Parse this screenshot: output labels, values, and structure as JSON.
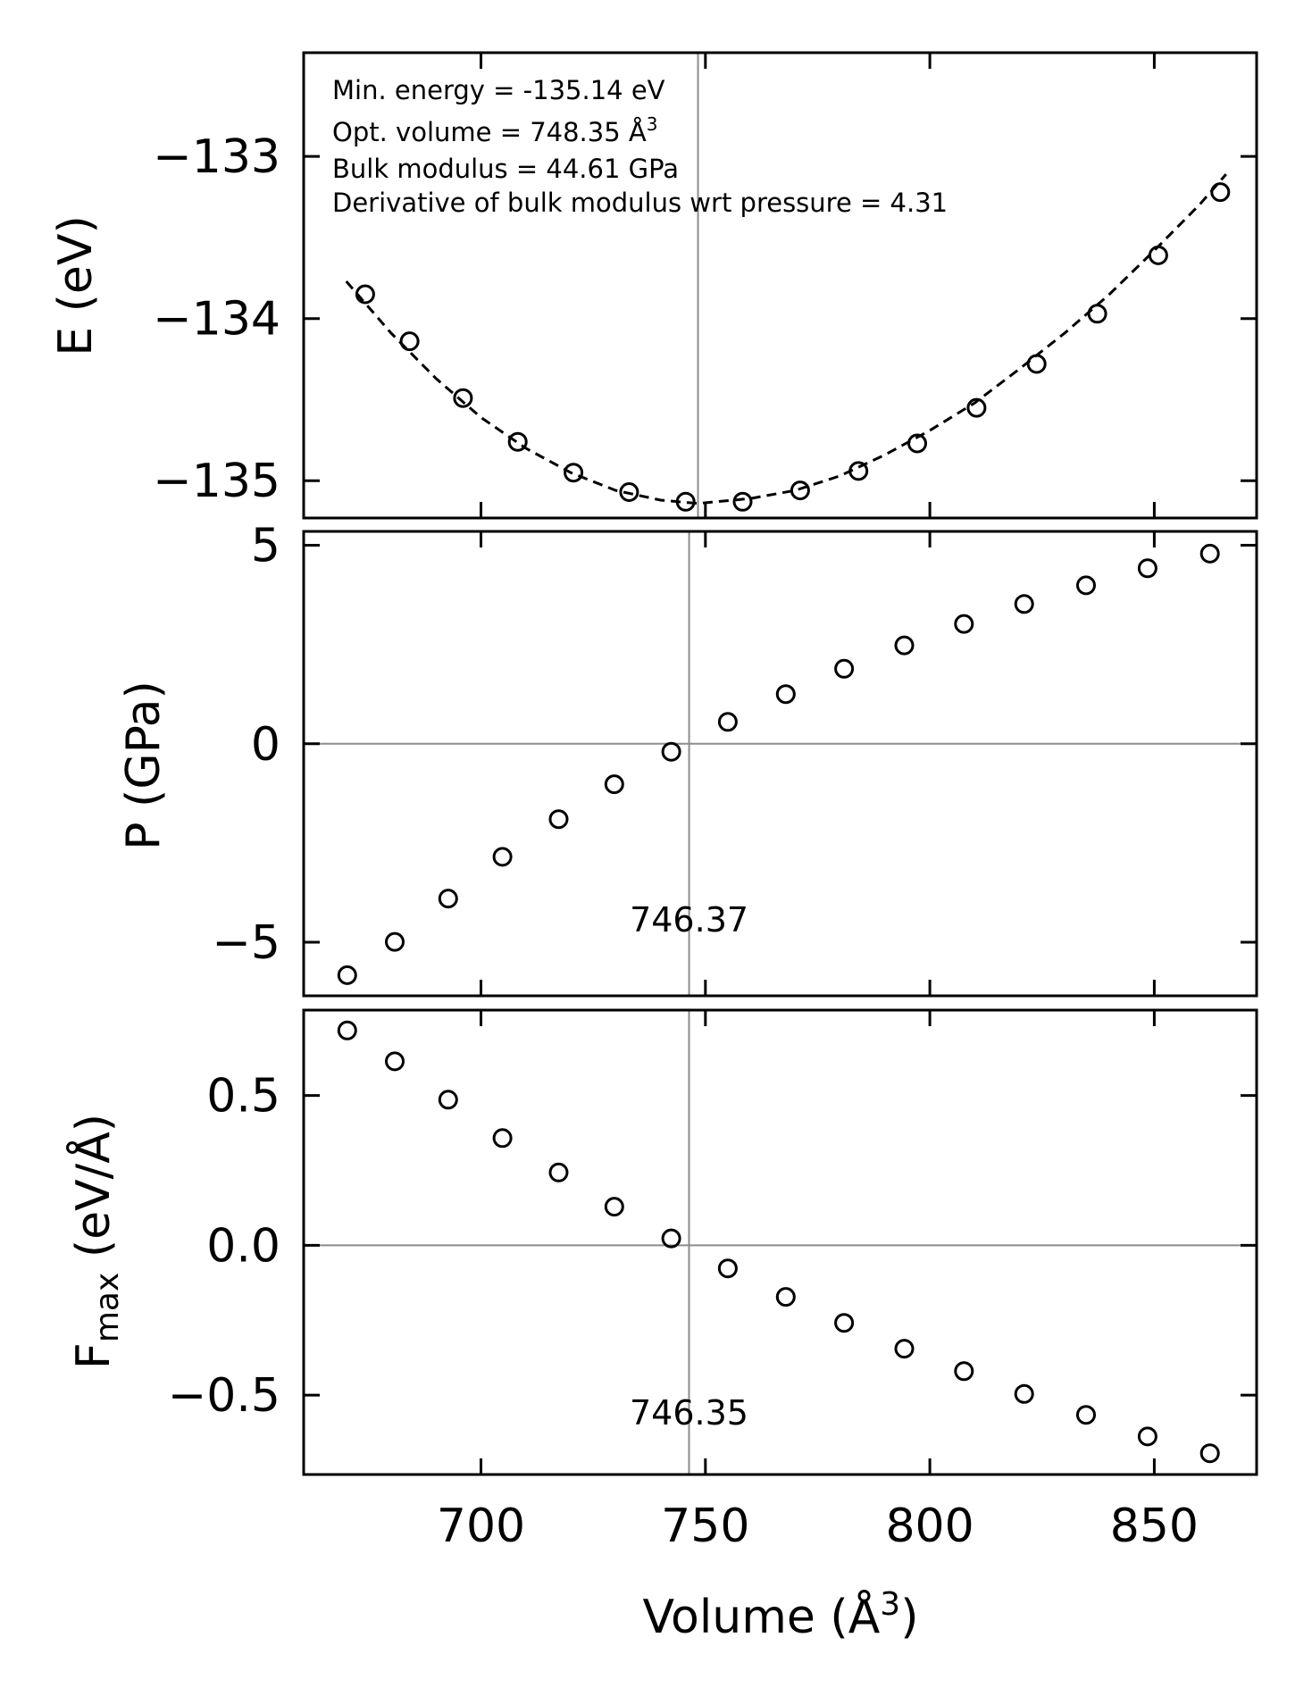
{
  "chart_data": [
    {
      "type": "scatter",
      "name": "energy",
      "ylabel": "E (eV)",
      "xlim": [
        660.5,
        872.8
      ],
      "ylim": [
        -135.23,
        -132.36
      ],
      "yticks": [
        -133,
        -134,
        -135
      ],
      "ytick_labels": [
        "−133",
        "−134",
        "−135"
      ],
      "x": [
        674.2,
        684.1,
        696.0,
        708.2,
        720.6,
        733.0,
        745.6,
        758.3,
        771.1,
        784.1,
        797.2,
        810.4,
        823.8,
        837.3,
        850.9,
        864.7
      ],
      "y": [
        -133.85,
        -134.14,
        -134.49,
        -134.76,
        -134.95,
        -135.07,
        -135.13,
        -135.13,
        -135.06,
        -134.94,
        -134.77,
        -134.55,
        -134.28,
        -133.97,
        -133.61,
        -133.22
      ],
      "fit": {
        "style": "dashed",
        "x": [
          670,
          680,
          690,
          700,
          710,
          720,
          730,
          740,
          748.35,
          760,
          770,
          780,
          790,
          800,
          810,
          820,
          830,
          840,
          850,
          860,
          866
        ],
        "y": [
          -133.77,
          -134.09,
          -134.37,
          -134.61,
          -134.8,
          -134.95,
          -135.06,
          -135.12,
          -135.14,
          -135.11,
          -135.06,
          -134.97,
          -134.84,
          -134.69,
          -134.52,
          -134.31,
          -134.09,
          -133.85,
          -133.58,
          -133.3,
          -133.11
        ]
      },
      "vline_x": 748.35,
      "annotations": {
        "min_energy": "Min. energy = -135.14 eV",
        "opt_volume": "Opt. volume = 748.35 Å",
        "opt_volume_sup": "3",
        "bulk_modulus": "Bulk modulus = 44.61 GPa",
        "bulk_derivative": "Derivative of bulk modulus wrt pressure = 4.31"
      }
    },
    {
      "type": "scatter",
      "name": "pressure",
      "ylabel": "P (GPa)",
      "xlim": [
        660.5,
        872.8
      ],
      "ylim": [
        -6.35,
        5.35
      ],
      "yticks": [
        5,
        0,
        -5
      ],
      "ytick_labels": [
        "5",
        "0",
        "−5"
      ],
      "x": [
        670.2,
        680.8,
        692.7,
        704.8,
        717.3,
        729.7,
        742.4,
        755.0,
        767.9,
        780.9,
        794.3,
        807.6,
        821.0,
        834.8,
        848.5,
        862.4
      ],
      "y": [
        -5.83,
        -4.99,
        -3.9,
        -2.85,
        -1.9,
        -1.02,
        -0.2,
        0.55,
        1.25,
        1.89,
        2.48,
        3.02,
        3.52,
        3.99,
        4.42,
        4.79
      ],
      "vline_x": 746.37,
      "vline_label": "746.37",
      "hline_y": 0
    },
    {
      "type": "scatter",
      "name": "max_force",
      "ylabel": "F",
      "ylabel_sub": "max",
      "ylabel_tail": " (eV/Å)",
      "xlabel": "Volume (Å",
      "xlabel_sup": "3",
      "xlabel_tail": ")",
      "xlim": [
        660.5,
        872.8
      ],
      "xticks": [
        700,
        750,
        800,
        850
      ],
      "xtick_labels": [
        "700",
        "750",
        "800",
        "850"
      ],
      "ylim": [
        -0.765,
        0.785
      ],
      "yticks": [
        0.5,
        0.0,
        -0.5
      ],
      "ytick_labels": [
        "0.5",
        "0.0",
        "−0.5"
      ],
      "x": [
        670.2,
        680.8,
        692.7,
        704.8,
        717.3,
        729.7,
        742.4,
        755.0,
        767.9,
        780.9,
        794.3,
        807.6,
        821.0,
        834.8,
        848.5,
        862.4
      ],
      "y": [
        0.717,
        0.614,
        0.486,
        0.358,
        0.243,
        0.129,
        0.023,
        -0.077,
        -0.172,
        -0.259,
        -0.345,
        -0.42,
        -0.496,
        -0.566,
        -0.638,
        -0.694
      ],
      "vline_x": 746.35,
      "vline_label": "746.35",
      "hline_y": 0
    }
  ]
}
